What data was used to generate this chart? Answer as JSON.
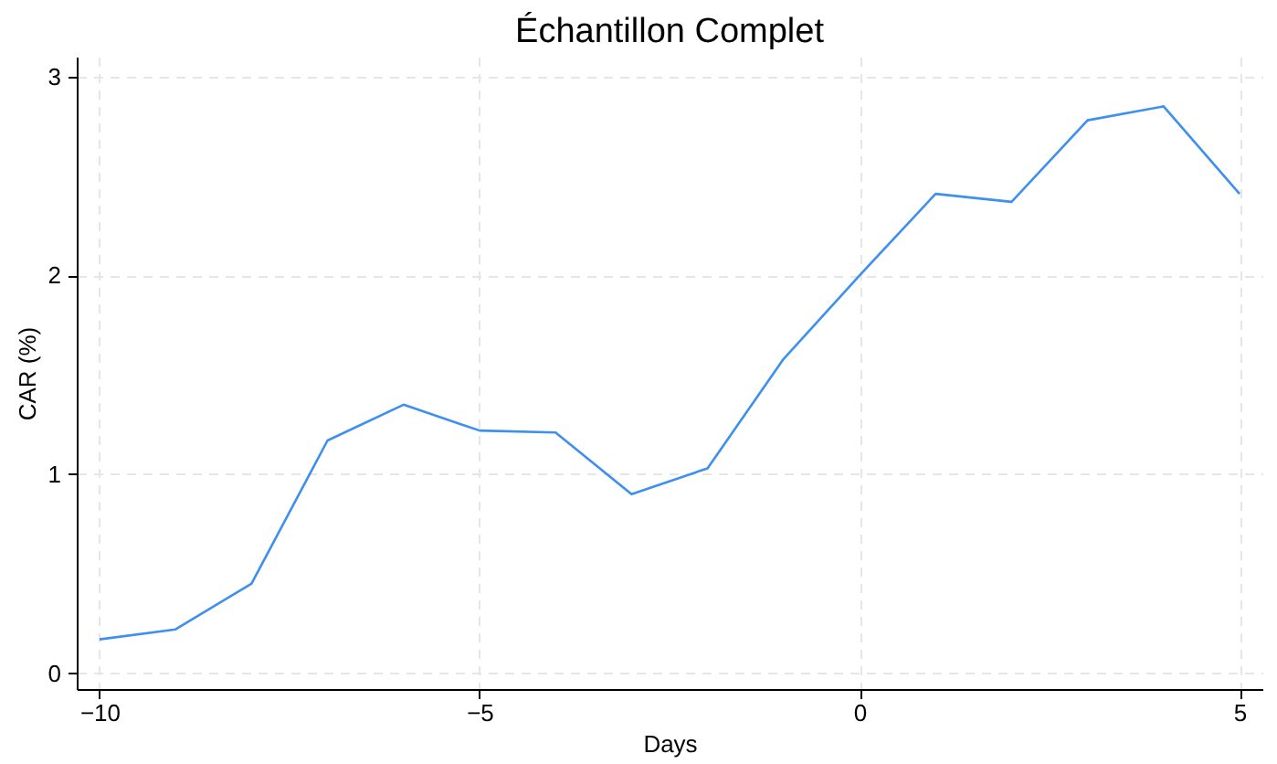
{
  "chart_data": {
    "type": "line",
    "title": "Échantillon Complet",
    "xlabel": "Days",
    "ylabel": "CAR (%)",
    "x": [
      -10,
      -9,
      -8,
      -7,
      -6,
      -5,
      -4,
      -3,
      -2,
      -1,
      0,
      1,
      2,
      3,
      4,
      5
    ],
    "series": [
      {
        "color": "#3d8ff0",
        "values": [
          0.17,
          0.22,
          0.45,
          1.17,
          1.35,
          1.22,
          1.21,
          0.9,
          1.03,
          1.58,
          2.0,
          2.41,
          2.37,
          2.78,
          2.85,
          2.41
        ]
      }
    ],
    "xlim": [
      -10.3,
      5.3
    ],
    "xticks": [
      -10,
      -5,
      0,
      5
    ],
    "ylim": [
      -0.08,
      3.1
    ],
    "yticks": [
      0,
      1,
      2,
      3
    ],
    "grid": true,
    "marker": "none",
    "line_style": "solid"
  }
}
